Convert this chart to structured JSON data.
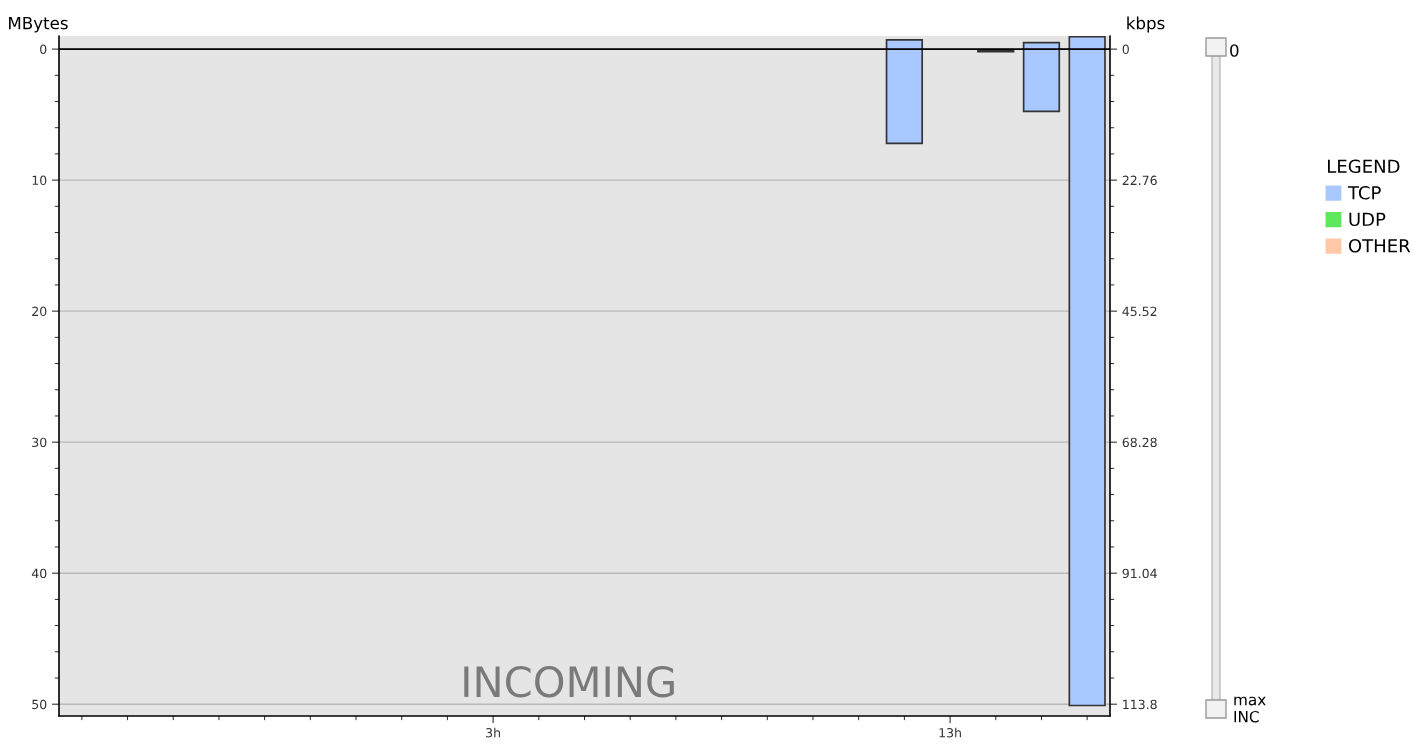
{
  "chart_data": {
    "type": "bar",
    "ylabel": "MBytes",
    "y2label": "kbps",
    "legend_title": "LEGEND",
    "x": [
      12,
      14,
      15,
      16
    ],
    "series": [
      {
        "name": "TCP",
        "color": "#a8c8ff",
        "values": [
          7.9,
          0.1,
          5.25,
          51.05
        ],
        "base": [
          -0.7,
          0.1,
          -0.5,
          -0.95
        ]
      },
      {
        "name": "UDP",
        "color": "#5de85d",
        "values": [
          null,
          null,
          null,
          null
        ]
      },
      {
        "name": "OTHER",
        "color": "#ffc8a8",
        "values": [
          null,
          null,
          null,
          null
        ]
      }
    ],
    "xlim": [
      -6.5,
      16.5
    ],
    "xticks": [
      {
        "value": 3,
        "label": "3h"
      },
      {
        "value": 13,
        "label": "13h"
      }
    ],
    "ylim": [
      50.9,
      -1.0
    ],
    "yticks": [
      0,
      10,
      20,
      30,
      40,
      50
    ],
    "y2lim": [
      115.85,
      -2.28
    ],
    "y2ticks": [
      0,
      22.76,
      45.52,
      68.28,
      91.04,
      113.8
    ],
    "ref_lines": [
      {
        "axis": "y",
        "value": 0,
        "color": "#000000"
      }
    ],
    "grid": "y",
    "legend": "right",
    "annotations": [
      "INCOMING",
      "0",
      "max",
      "INC"
    ]
  }
}
